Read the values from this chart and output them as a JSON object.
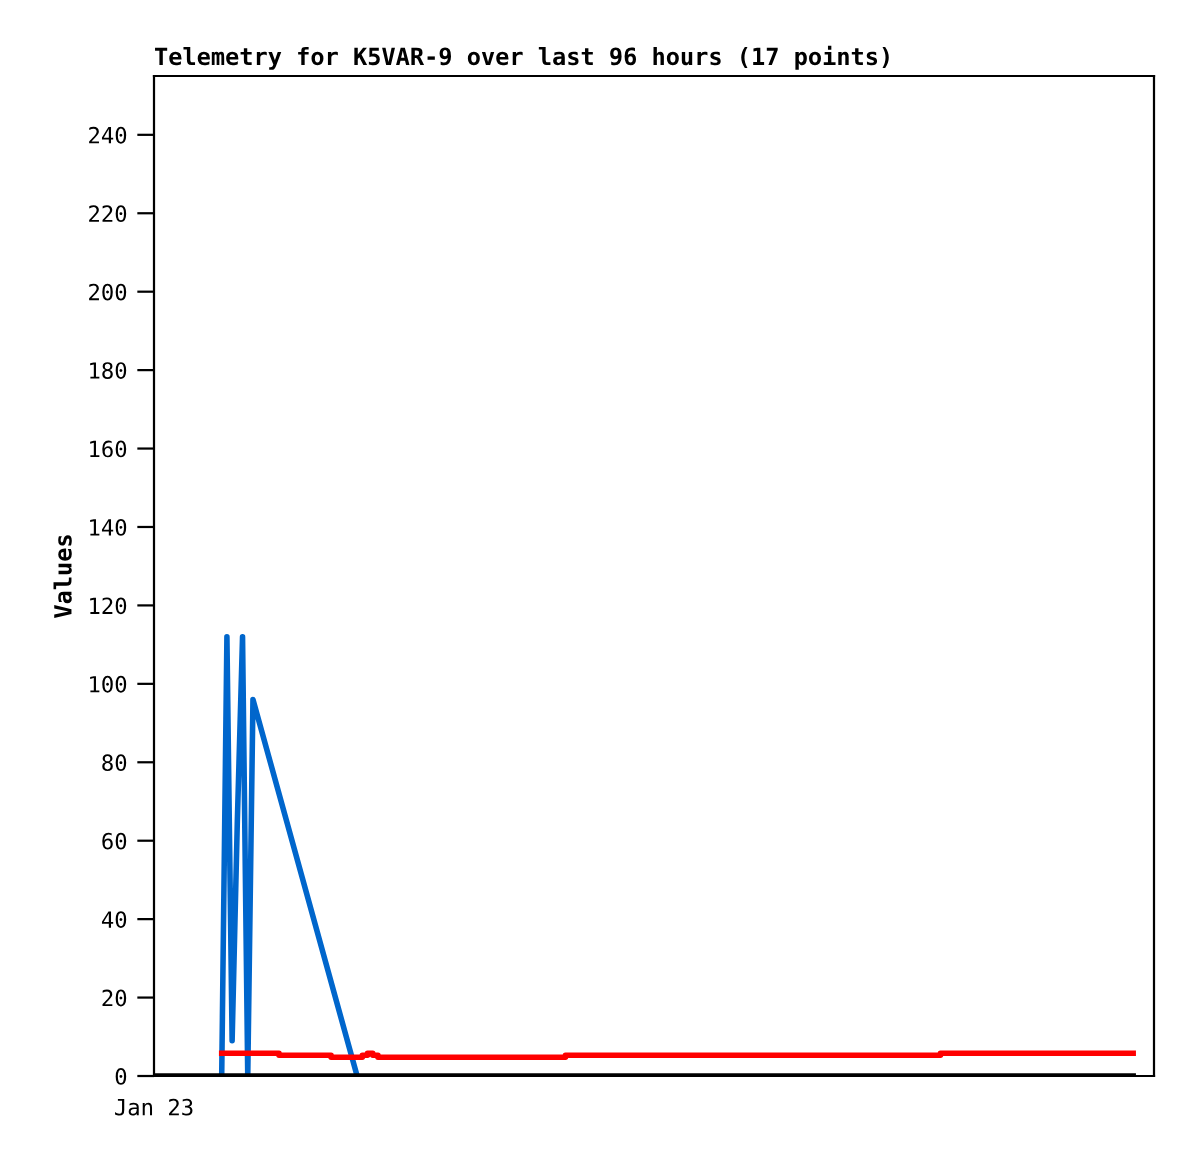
{
  "chart_data": {
    "type": "line",
    "title": "Telemetry for K5VAR-9 over last 96 hours (17 points)",
    "ylabel": "Values",
    "categories": [
      "Jan 23",
      null,
      null,
      null,
      null,
      null,
      null,
      null,
      null,
      null,
      null,
      null,
      null,
      null,
      null,
      null,
      null,
      null,
      null,
      null,
      null,
      null,
      null,
      null,
      null,
      null,
      null,
      null,
      null,
      null,
      null,
      null,
      null,
      null,
      null,
      null,
      null,
      null,
      null,
      null,
      null,
      null,
      null,
      null,
      null,
      null,
      null,
      null,
      null,
      null,
      null,
      null,
      null,
      null,
      null,
      null,
      null,
      null,
      null,
      null,
      null,
      null,
      null,
      null,
      null,
      null,
      null,
      null,
      null,
      null,
      null,
      null,
      null,
      null,
      null,
      null,
      null,
      null,
      null,
      null,
      null,
      null,
      null,
      null,
      null,
      null,
      null,
      null,
      null,
      null,
      null,
      null,
      null,
      null,
      null,
      null,
      null,
      null,
      null,
      null,
      null,
      null,
      null,
      null,
      null,
      null,
      null,
      null,
      null,
      null,
      null,
      null,
      null,
      null,
      null,
      null,
      null,
      null,
      null,
      null,
      null,
      null,
      null,
      null,
      null,
      null,
      null,
      null,
      null,
      null,
      null,
      null,
      null,
      null,
      null,
      null,
      null,
      null,
      null,
      null,
      null,
      null,
      null,
      null,
      null,
      null,
      null,
      null,
      null,
      null,
      null,
      null,
      null,
      null,
      null,
      null,
      null,
      null,
      null,
      null,
      null,
      null,
      null,
      null,
      null,
      null,
      null,
      null,
      null,
      null,
      null,
      null,
      null,
      null,
      null,
      null,
      null,
      null,
      null,
      null,
      null,
      null,
      null,
      null,
      null,
      null,
      null,
      null,
      null,
      null,
      null,
      null,
      null
    ],
    "ylim": [
      0,
      255
    ],
    "yticks": [
      0,
      20,
      40,
      60,
      80,
      100,
      120,
      140,
      160,
      180,
      200,
      220,
      240
    ],
    "grid": false,
    "marker": "none",
    "line_style": "solid",
    "series": [
      {
        "color": "#0066cc",
        "values": [
          null,
          null,
          null,
          null,
          null,
          null,
          null,
          null,
          null,
          null,
          null,
          null,
          null,
          0,
          112,
          9,
          65,
          112,
          0,
          96,
          null,
          null,
          null,
          null,
          null,
          null,
          null,
          null,
          null,
          null,
          null,
          null,
          null,
          null,
          null,
          null,
          null,
          null,
          null,
          0,
          null,
          null,
          null,
          null,
          null,
          null,
          null,
          null,
          null,
          null,
          null,
          null,
          null,
          null,
          null,
          null,
          null,
          null,
          null,
          null,
          null,
          null,
          null,
          null,
          null,
          null,
          null,
          null,
          null,
          null,
          null,
          null,
          null,
          null,
          null,
          null,
          null,
          null,
          null,
          null,
          null,
          null,
          null,
          null,
          null,
          null,
          null,
          null,
          null,
          null,
          null,
          null,
          null,
          null,
          null,
          null,
          null,
          null,
          null,
          null,
          null,
          null,
          null,
          null,
          null,
          null,
          null,
          null,
          null,
          null,
          null,
          null,
          null,
          null,
          null,
          null,
          null,
          null,
          null,
          null,
          null,
          null,
          null,
          null,
          null,
          null,
          null,
          null,
          null,
          null,
          null,
          null,
          null,
          null,
          null,
          null,
          null,
          null,
          null,
          null,
          null,
          null,
          null,
          null,
          null,
          null,
          null,
          null,
          null,
          null,
          null,
          null,
          null,
          null,
          null,
          null,
          null,
          null,
          null,
          null,
          null,
          null,
          null,
          null,
          null,
          null,
          null,
          null,
          null,
          null,
          null,
          null,
          null,
          null,
          null,
          null,
          null,
          null,
          null,
          null,
          null,
          null,
          null,
          null,
          null,
          null,
          null,
          null,
          null,
          null,
          null,
          null,
          null
        ]
      },
      {
        "type": "step",
        "color": "#ff0000",
        "values": [
          null,
          null,
          null,
          null,
          null,
          null,
          null,
          null,
          null,
          null,
          null,
          null,
          null,
          5.8,
          5.8,
          5.8,
          5.8,
          5.8,
          5.8,
          5.8,
          5.8,
          5.8,
          5.8,
          5.8,
          5.3,
          5.3,
          5.3,
          5.3,
          5.3,
          5.3,
          5.3,
          5.3,
          5.3,
          5.3,
          4.8,
          4.8,
          4.8,
          4.8,
          4.8,
          4.8,
          5.3,
          5.8,
          5.3,
          4.8,
          4.8,
          4.8,
          4.8,
          4.8,
          4.8,
          4.8,
          4.8,
          4.8,
          4.8,
          4.8,
          4.8,
          4.8,
          4.8,
          4.8,
          4.8,
          4.8,
          4.8,
          4.8,
          4.8,
          4.8,
          4.8,
          4.8,
          4.8,
          4.8,
          4.8,
          4.8,
          4.8,
          4.8,
          4.8,
          4.8,
          4.8,
          4.8,
          4.8,
          4.8,
          4.8,
          5.3,
          5.3,
          5.3,
          5.3,
          5.3,
          5.3,
          5.3,
          5.3,
          5.3,
          5.3,
          5.3,
          5.3,
          5.3,
          5.3,
          5.3,
          5.3,
          5.3,
          5.3,
          5.3,
          5.3,
          5.3,
          5.3,
          5.3,
          5.3,
          5.3,
          5.3,
          5.3,
          5.3,
          5.3,
          5.3,
          5.3,
          5.3,
          5.3,
          5.3,
          5.3,
          5.3,
          5.3,
          5.3,
          5.3,
          5.3,
          5.3,
          5.3,
          5.3,
          5.3,
          5.3,
          5.3,
          5.3,
          5.3,
          5.3,
          5.3,
          5.3,
          5.3,
          5.3,
          5.3,
          5.3,
          5.3,
          5.3,
          5.3,
          5.3,
          5.3,
          5.3,
          5.3,
          5.3,
          5.3,
          5.3,
          5.3,
          5.3,
          5.3,
          5.3,
          5.3,
          5.3,
          5.3,
          5.8,
          5.8,
          5.8,
          5.8,
          5.8,
          5.8,
          5.8,
          5.8,
          5.8,
          5.8,
          5.8,
          5.8,
          5.8,
          5.8,
          5.8,
          5.8,
          5.8,
          5.8,
          5.8,
          5.8,
          5.8,
          5.8,
          5.8,
          5.8,
          5.8,
          5.8,
          5.8,
          5.8,
          5.8,
          5.8,
          5.8,
          5.8,
          5.8,
          5.8,
          5.8,
          5.8,
          5.8,
          5.8,
          null,
          null,
          null,
          null
        ]
      },
      {
        "color": "#000000",
        "values": [
          0,
          0,
          0,
          0,
          0,
          0,
          0,
          0,
          0,
          0,
          0,
          0,
          0,
          0,
          0,
          0,
          0,
          0,
          0,
          0,
          0,
          0,
          0,
          0,
          0,
          0,
          0,
          0,
          0,
          0,
          0,
          0,
          0,
          0,
          0,
          0,
          0,
          0,
          0,
          0,
          0,
          0,
          0,
          0,
          0,
          0,
          0,
          0,
          0,
          0,
          0,
          0,
          0,
          0,
          0,
          0,
          0,
          0,
          0,
          0,
          0,
          0,
          0,
          0,
          0,
          0,
          0,
          0,
          0,
          0,
          0,
          0,
          0,
          0,
          0,
          0,
          0,
          0,
          0,
          0,
          0,
          0,
          0,
          0,
          0,
          0,
          0,
          0,
          0,
          0,
          0,
          0,
          0,
          0,
          0,
          0,
          0,
          0,
          0,
          0,
          0,
          0,
          0,
          0,
          0,
          0,
          0,
          0,
          0,
          0,
          0,
          0,
          0,
          0,
          0,
          0,
          0,
          0,
          0,
          0,
          0,
          0,
          0,
          0,
          0,
          0,
          0,
          0,
          0,
          0,
          0,
          0,
          0,
          0,
          0,
          0,
          0,
          0,
          0,
          0,
          0,
          0,
          0,
          0,
          0,
          0,
          0,
          0,
          0,
          0,
          0,
          0,
          0,
          0,
          0,
          0,
          0,
          0,
          0,
          0,
          0,
          0,
          0,
          0,
          0,
          0,
          0,
          0,
          0,
          0,
          0,
          0,
          0,
          0,
          0,
          0,
          0,
          0,
          0,
          0,
          0,
          0,
          0,
          0,
          0,
          0,
          0,
          0,
          0,
          null,
          null,
          null,
          null
        ]
      }
    ]
  }
}
